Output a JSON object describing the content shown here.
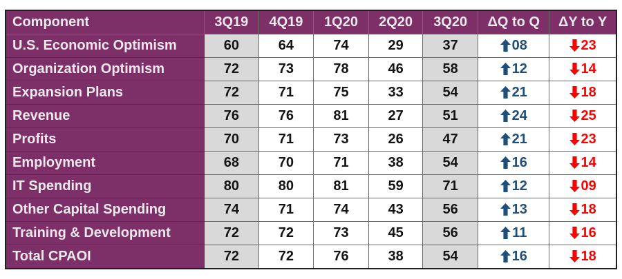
{
  "colors": {
    "purple": "#7d2f67",
    "light_text": "#efe9ee",
    "shade_gray": "#d9d9d9",
    "up_blue": "#1f4e79",
    "down_red": "#fe0000",
    "grid_line": "#6a6a6a",
    "outer_border": "#1f1f1f",
    "value_text": "#141414"
  },
  "chart_data": {
    "type": "table",
    "columns": [
      "Component",
      "3Q19",
      "4Q19",
      "1Q20",
      "2Q20",
      "3Q20",
      "ΔQ to Q",
      "ΔY to Y"
    ],
    "shaded_columns": [
      "3Q19",
      "3Q20"
    ],
    "legend": {
      "up_arrow_meaning": "increase quarter over quarter (blue)",
      "down_arrow_meaning": "decrease year over year (red)"
    },
    "rows": [
      {
        "component": "U.S. Economic Optimism",
        "values": [
          60,
          64,
          74,
          29,
          37
        ],
        "q_to_q": {
          "direction": "up",
          "value": "08"
        },
        "y_to_y": {
          "direction": "down",
          "value": "23"
        }
      },
      {
        "component": "Organization Optimism",
        "values": [
          72,
          73,
          78,
          46,
          58
        ],
        "q_to_q": {
          "direction": "up",
          "value": "12"
        },
        "y_to_y": {
          "direction": "down",
          "value": "14"
        }
      },
      {
        "component": "Expansion Plans",
        "values": [
          72,
          71,
          75,
          33,
          54
        ],
        "q_to_q": {
          "direction": "up",
          "value": "21"
        },
        "y_to_y": {
          "direction": "down",
          "value": "18"
        }
      },
      {
        "component": "Revenue",
        "values": [
          76,
          76,
          81,
          27,
          51
        ],
        "q_to_q": {
          "direction": "up",
          "value": "24"
        },
        "y_to_y": {
          "direction": "down",
          "value": "25"
        }
      },
      {
        "component": "Profits",
        "values": [
          70,
          71,
          73,
          26,
          47
        ],
        "q_to_q": {
          "direction": "up",
          "value": "21"
        },
        "y_to_y": {
          "direction": "down",
          "value": "23"
        }
      },
      {
        "component": "Employment",
        "values": [
          68,
          70,
          71,
          38,
          54
        ],
        "q_to_q": {
          "direction": "up",
          "value": "16"
        },
        "y_to_y": {
          "direction": "down",
          "value": "14"
        }
      },
      {
        "component": "IT Spending",
        "values": [
          80,
          80,
          81,
          59,
          71
        ],
        "q_to_q": {
          "direction": "up",
          "value": "12"
        },
        "y_to_y": {
          "direction": "down",
          "value": "09"
        }
      },
      {
        "component": "Other Capital Spending",
        "values": [
          74,
          71,
          74,
          43,
          56
        ],
        "q_to_q": {
          "direction": "up",
          "value": "13"
        },
        "y_to_y": {
          "direction": "down",
          "value": "18"
        }
      },
      {
        "component": "Training & Development",
        "values": [
          72,
          72,
          73,
          45,
          56
        ],
        "q_to_q": {
          "direction": "up",
          "value": "11"
        },
        "y_to_y": {
          "direction": "down",
          "value": "16"
        }
      },
      {
        "component": "Total CPAOI",
        "values": [
          72,
          72,
          76,
          38,
          54
        ],
        "q_to_q": {
          "direction": "up",
          "value": "16"
        },
        "y_to_y": {
          "direction": "down",
          "value": "18"
        }
      }
    ]
  }
}
